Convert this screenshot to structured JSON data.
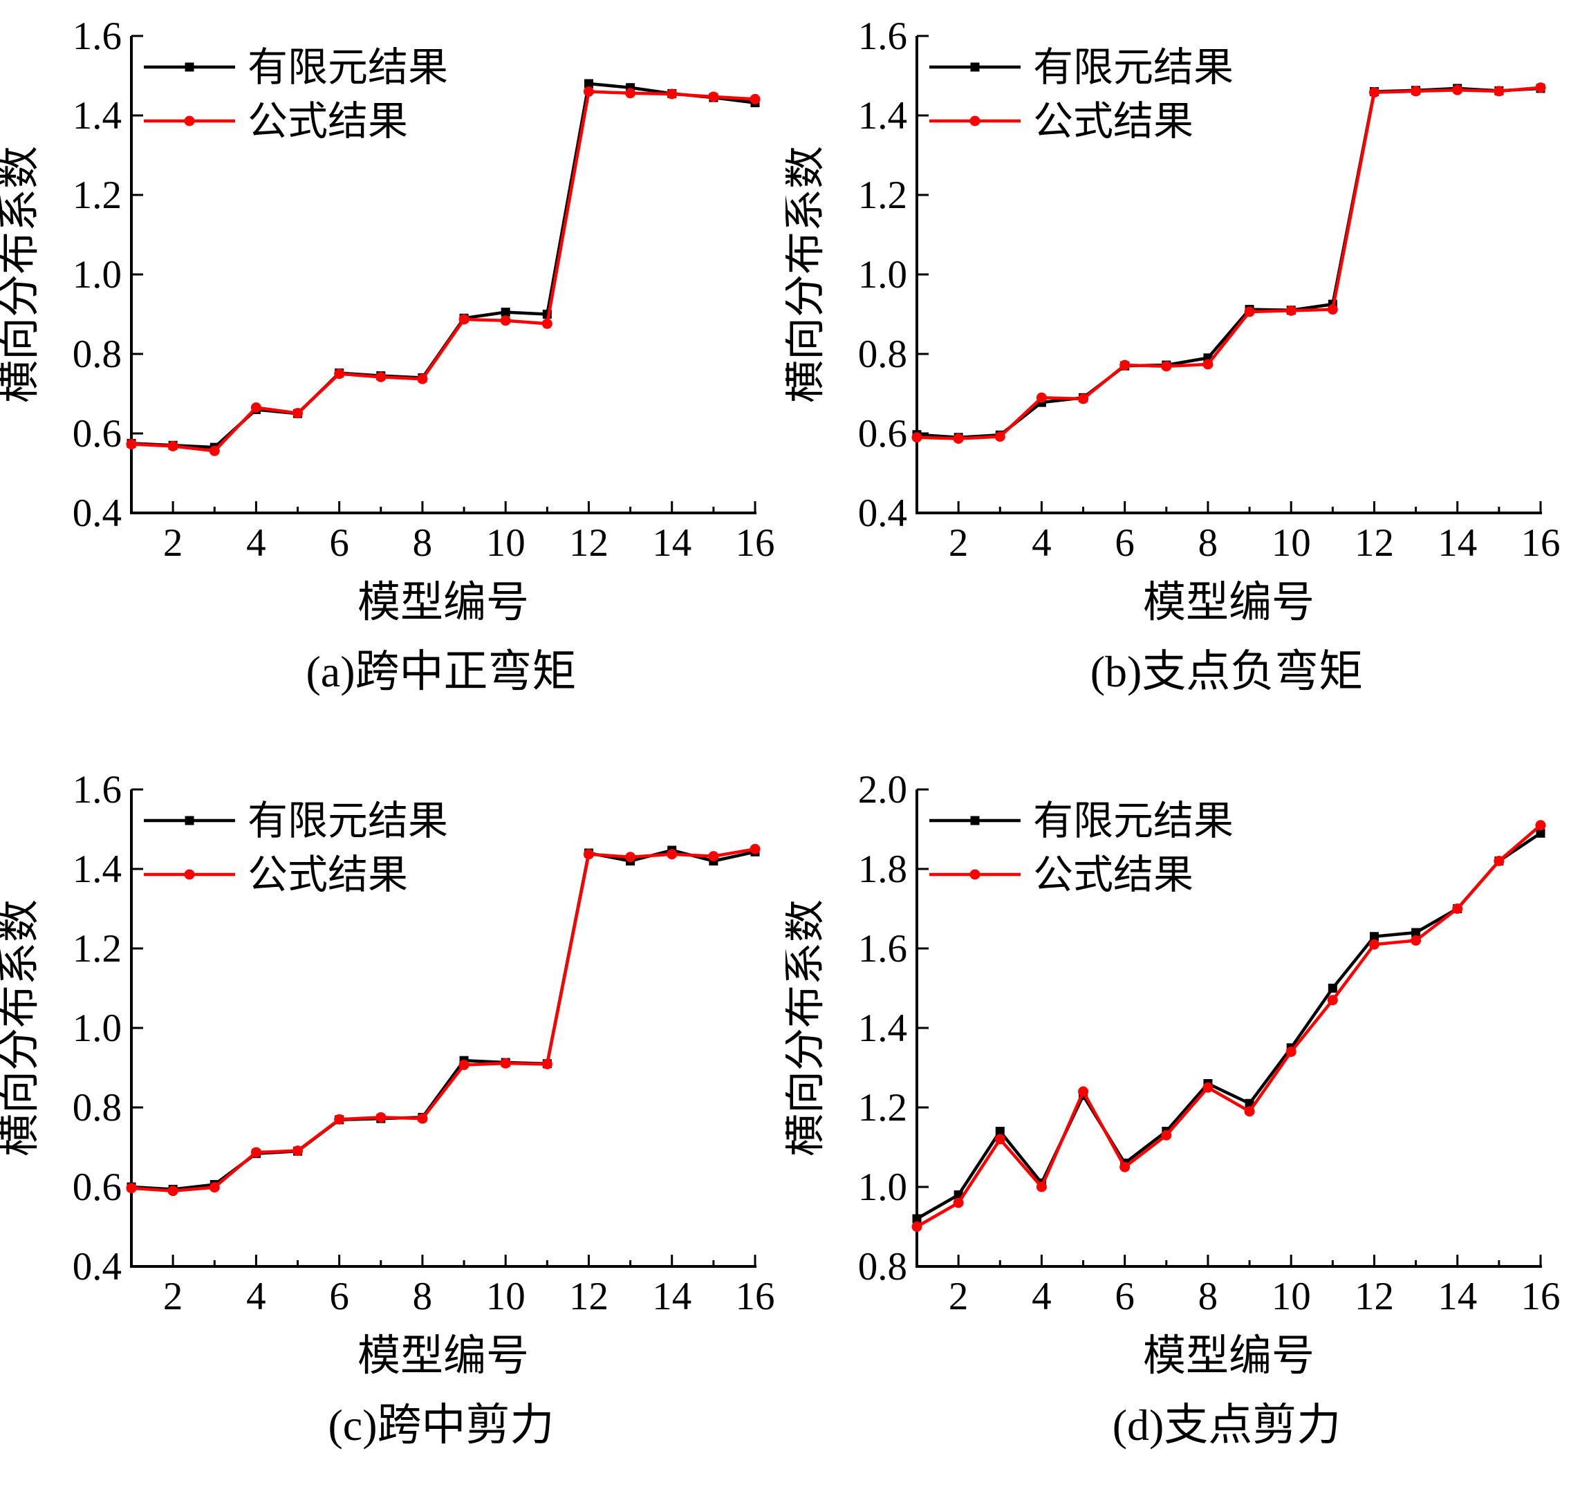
{
  "figure": {
    "ylabel": "横向分布系数",
    "xlabel": "模型编号",
    "legend_labels": [
      "有限元结果",
      "公式结果"
    ],
    "colors": {
      "fem": "#000000",
      "formula": "#fe0000"
    }
  },
  "chart_data": [
    {
      "type": "line",
      "title": "(a)跨中正弯矩",
      "xlabel": "模型编号",
      "ylabel": "横向分布系数",
      "xlim": [
        1,
        16
      ],
      "ylim": [
        0.4,
        1.6
      ],
      "xticks": [
        2,
        4,
        6,
        8,
        10,
        12,
        14,
        16
      ],
      "yticks": [
        0.4,
        0.6,
        0.8,
        1.0,
        1.2,
        1.4,
        1.6
      ],
      "grid": false,
      "legend_position": "top-left",
      "x": [
        1,
        2,
        3,
        4,
        5,
        6,
        7,
        8,
        9,
        10,
        11,
        12,
        13,
        14,
        15,
        16
      ],
      "series": [
        {
          "name": "有限元结果",
          "color": "#000000",
          "marker": "square",
          "values": [
            0.575,
            0.57,
            0.565,
            0.66,
            0.65,
            0.752,
            0.745,
            0.74,
            0.89,
            0.905,
            0.9,
            1.48,
            1.47,
            1.455,
            1.445,
            1.432
          ]
        },
        {
          "name": "公式结果",
          "color": "#fe0000",
          "marker": "circle",
          "values": [
            0.573,
            0.568,
            0.556,
            0.665,
            0.651,
            0.75,
            0.742,
            0.737,
            0.887,
            0.884,
            0.876,
            1.46,
            1.456,
            1.454,
            1.447,
            1.441
          ]
        }
      ]
    },
    {
      "type": "line",
      "title": "(b)支点负弯矩",
      "xlabel": "模型编号",
      "ylabel": "横向分布系数",
      "xlim": [
        1,
        16
      ],
      "ylim": [
        0.4,
        1.6
      ],
      "xticks": [
        2,
        4,
        6,
        8,
        10,
        12,
        14,
        16
      ],
      "yticks": [
        0.4,
        0.6,
        0.8,
        1.0,
        1.2,
        1.4,
        1.6
      ],
      "grid": false,
      "legend_position": "top-left",
      "x": [
        1,
        2,
        3,
        4,
        5,
        6,
        7,
        8,
        9,
        10,
        11,
        12,
        13,
        14,
        15,
        16
      ],
      "series": [
        {
          "name": "有限元结果",
          "color": "#000000",
          "marker": "square",
          "values": [
            0.597,
            0.59,
            0.596,
            0.678,
            0.69,
            0.77,
            0.772,
            0.79,
            0.912,
            0.91,
            0.925,
            1.46,
            1.463,
            1.468,
            1.462,
            1.468
          ]
        },
        {
          "name": "公式结果",
          "color": "#fe0000",
          "marker": "circle",
          "values": [
            0.59,
            0.587,
            0.592,
            0.69,
            0.687,
            0.772,
            0.769,
            0.774,
            0.906,
            0.909,
            0.912,
            1.458,
            1.461,
            1.464,
            1.461,
            1.47
          ]
        }
      ]
    },
    {
      "type": "line",
      "title": "(c)跨中剪力",
      "xlabel": "模型编号",
      "ylabel": "横向分布系数",
      "xlim": [
        1,
        16
      ],
      "ylim": [
        0.4,
        1.6
      ],
      "xticks": [
        2,
        4,
        6,
        8,
        10,
        12,
        14,
        16
      ],
      "yticks": [
        0.4,
        0.6,
        0.8,
        1.0,
        1.2,
        1.4,
        1.6
      ],
      "grid": false,
      "legend_position": "top-left",
      "x": [
        1,
        2,
        3,
        4,
        5,
        6,
        7,
        8,
        9,
        10,
        11,
        12,
        13,
        14,
        15,
        16
      ],
      "series": [
        {
          "name": "有限元结果",
          "color": "#000000",
          "marker": "square",
          "values": [
            0.6,
            0.594,
            0.606,
            0.684,
            0.69,
            0.769,
            0.772,
            0.775,
            0.918,
            0.913,
            0.91,
            1.44,
            1.42,
            1.447,
            1.42,
            1.443
          ]
        },
        {
          "name": "公式结果",
          "color": "#fe0000",
          "marker": "circle",
          "values": [
            0.597,
            0.59,
            0.599,
            0.687,
            0.691,
            0.77,
            0.775,
            0.772,
            0.907,
            0.911,
            0.909,
            1.437,
            1.43,
            1.437,
            1.432,
            1.45
          ]
        }
      ]
    },
    {
      "type": "line",
      "title": "(d)支点剪力",
      "xlabel": "模型编号",
      "ylabel": "横向分布系数",
      "xlim": [
        1,
        16
      ],
      "ylim": [
        0.8,
        2.0
      ],
      "xticks": [
        2,
        4,
        6,
        8,
        10,
        12,
        14,
        16
      ],
      "yticks": [
        0.8,
        1.0,
        1.2,
        1.4,
        1.6,
        1.8,
        2.0
      ],
      "grid": false,
      "legend_position": "top-left",
      "x": [
        1,
        2,
        3,
        4,
        5,
        6,
        7,
        8,
        9,
        10,
        11,
        12,
        13,
        14,
        15,
        16
      ],
      "series": [
        {
          "name": "有限元结果",
          "color": "#000000",
          "marker": "square",
          "values": [
            0.92,
            0.98,
            1.14,
            1.01,
            1.23,
            1.06,
            1.14,
            1.26,
            1.21,
            1.35,
            1.5,
            1.63,
            1.64,
            1.7,
            1.82,
            1.89
          ]
        },
        {
          "name": "公式结果",
          "color": "#fe0000",
          "marker": "circle",
          "values": [
            0.9,
            0.96,
            1.12,
            1.0,
            1.24,
            1.05,
            1.13,
            1.25,
            1.19,
            1.34,
            1.47,
            1.61,
            1.62,
            1.7,
            1.82,
            1.91
          ]
        }
      ]
    }
  ]
}
